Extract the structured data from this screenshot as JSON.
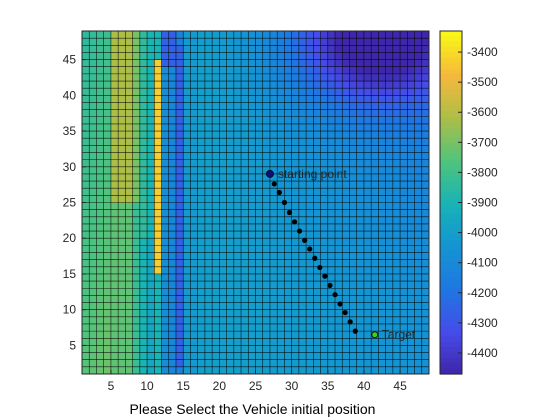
{
  "chart_data": {
    "type": "heatmap",
    "title": "",
    "xlabel": "Please Select the Vehicle initial position",
    "ylabel": "",
    "xlim": [
      1,
      49
    ],
    "ylim": [
      1,
      49
    ],
    "x_ticks": [
      5,
      10,
      15,
      20,
      25,
      30,
      35,
      40,
      45
    ],
    "y_ticks": [
      5,
      10,
      15,
      20,
      25,
      30,
      35,
      40,
      45
    ],
    "grid": true,
    "colorbar": {
      "min": -4470,
      "max": -3330,
      "ticks": [
        -3400,
        -3500,
        -3600,
        -3700,
        -3800,
        -3900,
        -4000,
        -4100,
        -4200,
        -4300,
        -4400
      ],
      "colormap": "parula"
    },
    "field_description": {
      "base_value": -4000,
      "high_band_columns": [
        5,
        6,
        7,
        8
      ],
      "high_band_value": -3620,
      "bright_column": 11,
      "bright_column_rows": [
        15,
        44
      ],
      "bright_column_value": -3430,
      "low_corridor_value": -4260,
      "deep_minimum_center": [
        41,
        47
      ],
      "deep_minimum_value": -4450
    },
    "path_points": [
      [
        27,
        29
      ],
      [
        27.6,
        27.6
      ],
      [
        28.3,
        26.4
      ],
      [
        29,
        25
      ],
      [
        29.7,
        23.6
      ],
      [
        30.4,
        22.3
      ],
      [
        31.1,
        21
      ],
      [
        31.8,
        19.7
      ],
      [
        32.5,
        18.5
      ],
      [
        33.2,
        17.2
      ],
      [
        33.9,
        15.9
      ],
      [
        34.6,
        14.7
      ],
      [
        35.3,
        13.4
      ],
      [
        36,
        12.1
      ],
      [
        36.7,
        10.8
      ],
      [
        37.4,
        9.6
      ],
      [
        38.1,
        8.3
      ],
      [
        38.8,
        7
      ]
    ],
    "start_point": {
      "x": 27,
      "y": 29,
      "label": "starting point"
    },
    "target_point": {
      "x": 41.5,
      "y": 6.5,
      "label": "Target"
    },
    "colors": {
      "path_marker": "#000000",
      "start_marker": "#0d0d80",
      "target_marker": "#40d020",
      "grid_line": "#000000"
    }
  }
}
